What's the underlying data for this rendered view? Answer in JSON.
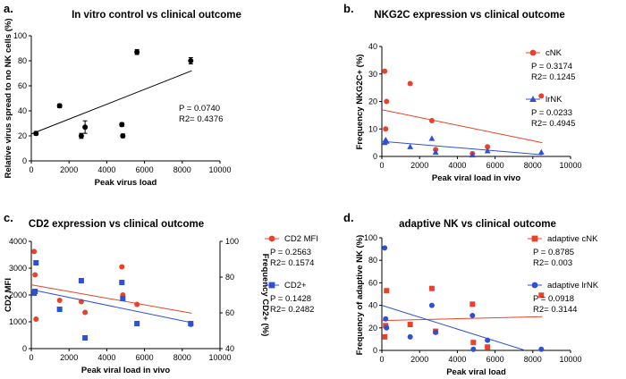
{
  "chart_data": [
    {
      "panel": "a.",
      "type": "scatter",
      "title": "In vitro control vs clinical outcome",
      "xlabel": "Peak virus load",
      "ylabel": "Relative virus spread to no NK cells (%)",
      "xlim": [
        0,
        10000
      ],
      "ylim": [
        0,
        100
      ],
      "xticks": [
        0,
        2000,
        4000,
        6000,
        8000,
        10000
      ],
      "yticks": [
        0,
        20,
        40,
        60,
        80,
        100
      ],
      "stats": [
        "P  = 0.0740",
        "R2= 0.4376"
      ],
      "series": [
        {
          "name": "",
          "color": "#000000",
          "marker": "circle",
          "x": [
            250,
            1500,
            2650,
            2850,
            4800,
            4850,
            5600,
            8450
          ],
          "y": [
            22,
            44,
            20,
            27,
            29,
            20,
            87,
            80
          ],
          "err": [
            1.5,
            1.5,
            2,
            5,
            1.5,
            1.5,
            2,
            2.5
          ],
          "fit": [
            [
              0,
              21.5
            ],
            [
              8500,
              72
            ]
          ]
        }
      ]
    },
    {
      "panel": "b.",
      "type": "scatter",
      "title": "NKG2C expression vs clinical outcome",
      "xlabel": "Peak viral load in vivo",
      "ylabel": "Frequency NKG2C+ (%)",
      "xlim": [
        0,
        10000
      ],
      "ylim": [
        0,
        40
      ],
      "xticks": [
        0,
        2000,
        4000,
        6000,
        8000,
        10000
      ],
      "yticks": [
        0,
        10,
        20,
        30,
        40
      ],
      "series": [
        {
          "name": "cNK",
          "color": "#e8432a",
          "marker": "circle",
          "x": [
            150,
            200,
            250,
            1500,
            2650,
            2850,
            4800,
            5600,
            8450
          ],
          "y": [
            31,
            10,
            20,
            26.5,
            13,
            2.5,
            1,
            3.5,
            22
          ],
          "fit": [
            [
              0,
              17
            ],
            [
              8500,
              5
            ]
          ],
          "stats": [
            "P  = 0.3174",
            "R2= 0.1245"
          ]
        },
        {
          "name": "lrNK",
          "color": "#2f4fd6",
          "marker": "triangle",
          "x": [
            150,
            200,
            250,
            1500,
            2650,
            2850,
            4800,
            5600,
            8450
          ],
          "y": [
            5,
            6,
            5.5,
            3.5,
            6.5,
            1.5,
            0.5,
            2,
            1.5
          ],
          "fit": [
            [
              0,
              5.5
            ],
            [
              8500,
              0.6
            ]
          ],
          "stats": [
            "P  = 0.0233",
            "R2= 0.4945"
          ]
        }
      ]
    },
    {
      "panel": "c.",
      "type": "scatter",
      "title": "CD2 expression vs clinical outcome",
      "xlabel": "Peak viral load in vivo",
      "ylabel": "CD2 MFI",
      "y2label": "Frequency CD2+ (%)",
      "xlim": [
        0,
        10000
      ],
      "ylim": [
        0,
        4000
      ],
      "y2lim": [
        40,
        100
      ],
      "xticks": [
        0,
        2000,
        4000,
        6000,
        8000,
        10000
      ],
      "yticks": [
        0,
        1000,
        2000,
        3000,
        4000
      ],
      "y2ticks": [
        40,
        60,
        80,
        100
      ],
      "series": [
        {
          "name": "CD2 MFI",
          "axis": "left",
          "color": "#e8432a",
          "marker": "circle",
          "x": [
            150,
            200,
            250,
            1500,
            2650,
            2850,
            4800,
            4850,
            5600,
            8450
          ],
          "y": [
            3620,
            2750,
            1100,
            1800,
            1750,
            1350,
            3050,
            2000,
            1650,
            900
          ],
          "fit": [
            [
              0,
              2380
            ],
            [
              8500,
              1320
            ]
          ],
          "stats": [
            "P  = 0.2563",
            "R2= 0.1574"
          ]
        },
        {
          "name": "CD2+",
          "axis": "right",
          "color": "#2f4fd6",
          "marker": "square",
          "x": [
            150,
            200,
            250,
            1500,
            2650,
            2850,
            4800,
            4850,
            5600,
            8450
          ],
          "y": [
            71,
            72,
            88,
            62,
            78,
            46,
            77,
            68,
            54,
            54
          ],
          "fit": [
            [
              0,
              73
            ],
            [
              8500,
              54.5
            ]
          ],
          "stats": [
            "P  = 0.1428",
            "R2= 0.2482"
          ]
        }
      ]
    },
    {
      "panel": "d.",
      "type": "scatter",
      "title": "adaptive NK vs clinical outcome",
      "xlabel": "Peak viral load",
      "ylabel": "Frequency of adaptive NK (%)",
      "xlim": [
        0,
        10000
      ],
      "ylim": [
        0,
        100
      ],
      "xticks": [
        0,
        2000,
        4000,
        6000,
        8000,
        10000
      ],
      "yticks": [
        0,
        20,
        40,
        60,
        80,
        100
      ],
      "series": [
        {
          "name": "adaptive cNK",
          "color": "#e8432a",
          "marker": "square",
          "x": [
            150,
            200,
            250,
            1500,
            2650,
            2850,
            4800,
            4850,
            5600,
            8450
          ],
          "y": [
            12,
            22,
            53,
            23,
            55,
            17,
            41,
            7,
            3,
            49
          ],
          "fit": [
            [
              0,
              26.5
            ],
            [
              8500,
              30
            ]
          ],
          "stats": [
            "P  = 0.8785",
            "R2= 0.003"
          ]
        },
        {
          "name": "adaptive lrNK",
          "color": "#2f4fd6",
          "marker": "circle",
          "x": [
            150,
            200,
            250,
            1500,
            2650,
            2850,
            4800,
            4850,
            5600,
            8450
          ],
          "y": [
            91,
            28,
            20,
            12,
            40,
            16,
            31,
            1,
            9,
            1
          ],
          "fit": [
            [
              0,
              40
            ],
            [
              7600,
              0
            ]
          ],
          "stats": [
            "P  = 0.0918",
            "R2= 0.3144"
          ]
        }
      ]
    }
  ]
}
